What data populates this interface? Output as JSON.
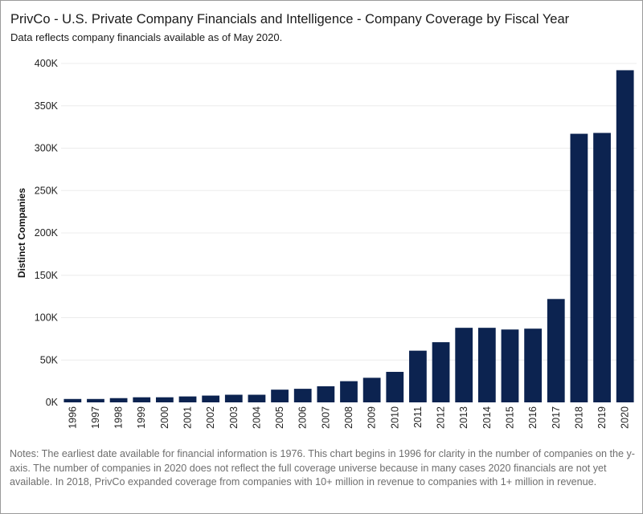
{
  "title": "PrivCo - U.S. Private Company Financials and Intelligence - Company Coverage by Fiscal Year",
  "subtitle": "Data reflects company financials available as of May 2020.",
  "notes": "Notes: The earliest date available for  financial information is 1976. This chart begins in 1996 for clarity in the number of companies on the y-axis. The number of companies in 2020 does not reflect the full coverage universe because in many cases 2020 financials are not yet available. In 2018, PrivCo expanded coverage from companies with 10+ million in revenue to companies with 1+ million in revenue.",
  "colors": {
    "bar": "#0c2350",
    "grid": "#ececec",
    "axis_text": "#222222"
  },
  "chart_data": {
    "type": "bar",
    "title": "PrivCo - U.S. Private Company Financials and Intelligence - Company Coverage by Fiscal Year",
    "xlabel": "",
    "ylabel": "Distinct Companies",
    "ylim": [
      0,
      400000
    ],
    "yticks": [
      0,
      50000,
      100000,
      150000,
      200000,
      250000,
      300000,
      350000,
      400000
    ],
    "ytick_labels": [
      "0K",
      "50K",
      "100K",
      "150K",
      "200K",
      "250K",
      "300K",
      "350K",
      "400K"
    ],
    "grid": true,
    "categories": [
      "1996",
      "1997",
      "1998",
      "1999",
      "2000",
      "2001",
      "2002",
      "2003",
      "2004",
      "2005",
      "2006",
      "2007",
      "2008",
      "2009",
      "2010",
      "2011",
      "2012",
      "2013",
      "2014",
      "2015",
      "2016",
      "2017",
      "2018",
      "2019",
      "2020"
    ],
    "values": [
      4000,
      4000,
      5000,
      6000,
      6000,
      7000,
      8000,
      9000,
      9000,
      15000,
      16000,
      19000,
      25000,
      29000,
      36000,
      61000,
      71000,
      88000,
      88000,
      86000,
      87000,
      122000,
      317000,
      318000,
      392000
    ]
  }
}
